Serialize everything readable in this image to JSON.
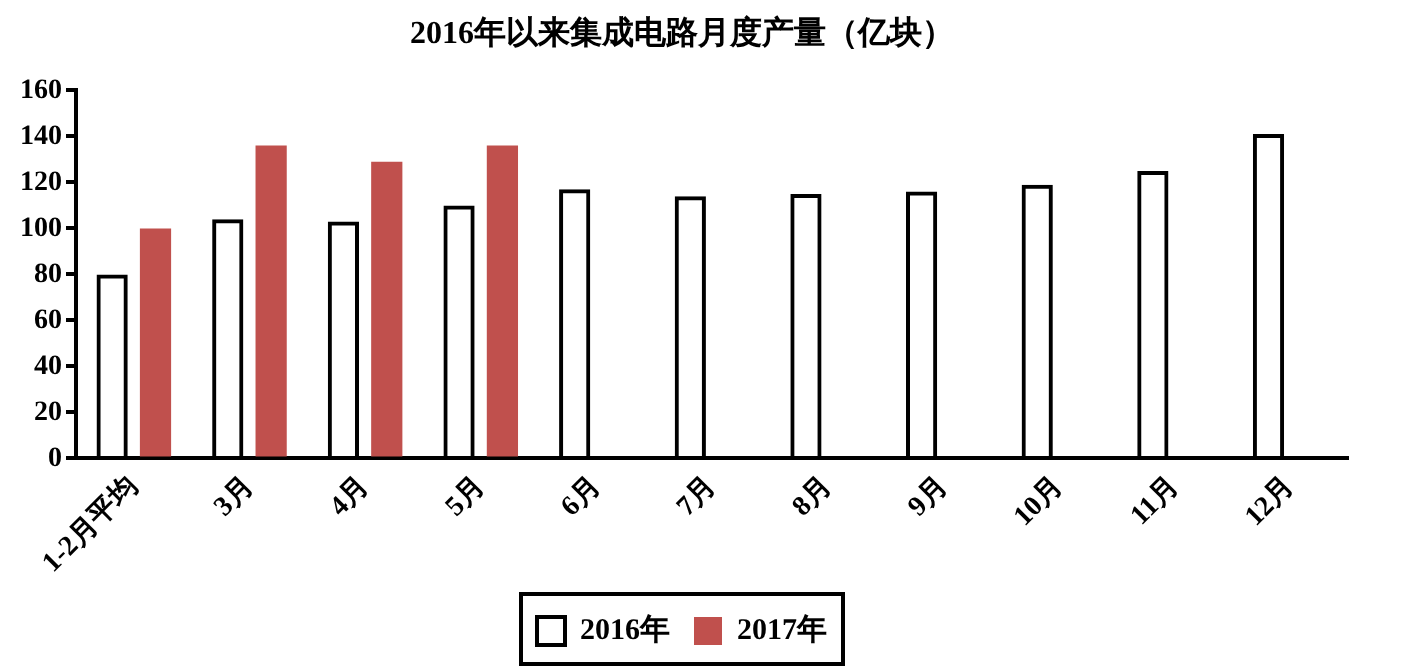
{
  "chart_data": {
    "type": "bar",
    "title": "2016年以来集成电路月度产量（亿块）",
    "categories": [
      "1-2月平均",
      "3月",
      "4月",
      "5月",
      "6月",
      "7月",
      "8月",
      "9月",
      "10月",
      "11月",
      "12月"
    ],
    "series": [
      {
        "name": "2016年",
        "color": "#000000",
        "values": [
          80,
          104,
          103,
          110,
          117,
          114,
          115,
          116,
          119,
          125,
          141
        ]
      },
      {
        "name": "2017年",
        "color": "#c0504d",
        "values": [
          100,
          136,
          129,
          136,
          null,
          null,
          null,
          null,
          null,
          null,
          null
        ]
      }
    ],
    "ylim": [
      0,
      160
    ],
    "yticks": [
      0,
      20,
      40,
      60,
      80,
      100,
      120,
      140,
      160
    ],
    "grid": false,
    "legend": "bottom"
  }
}
